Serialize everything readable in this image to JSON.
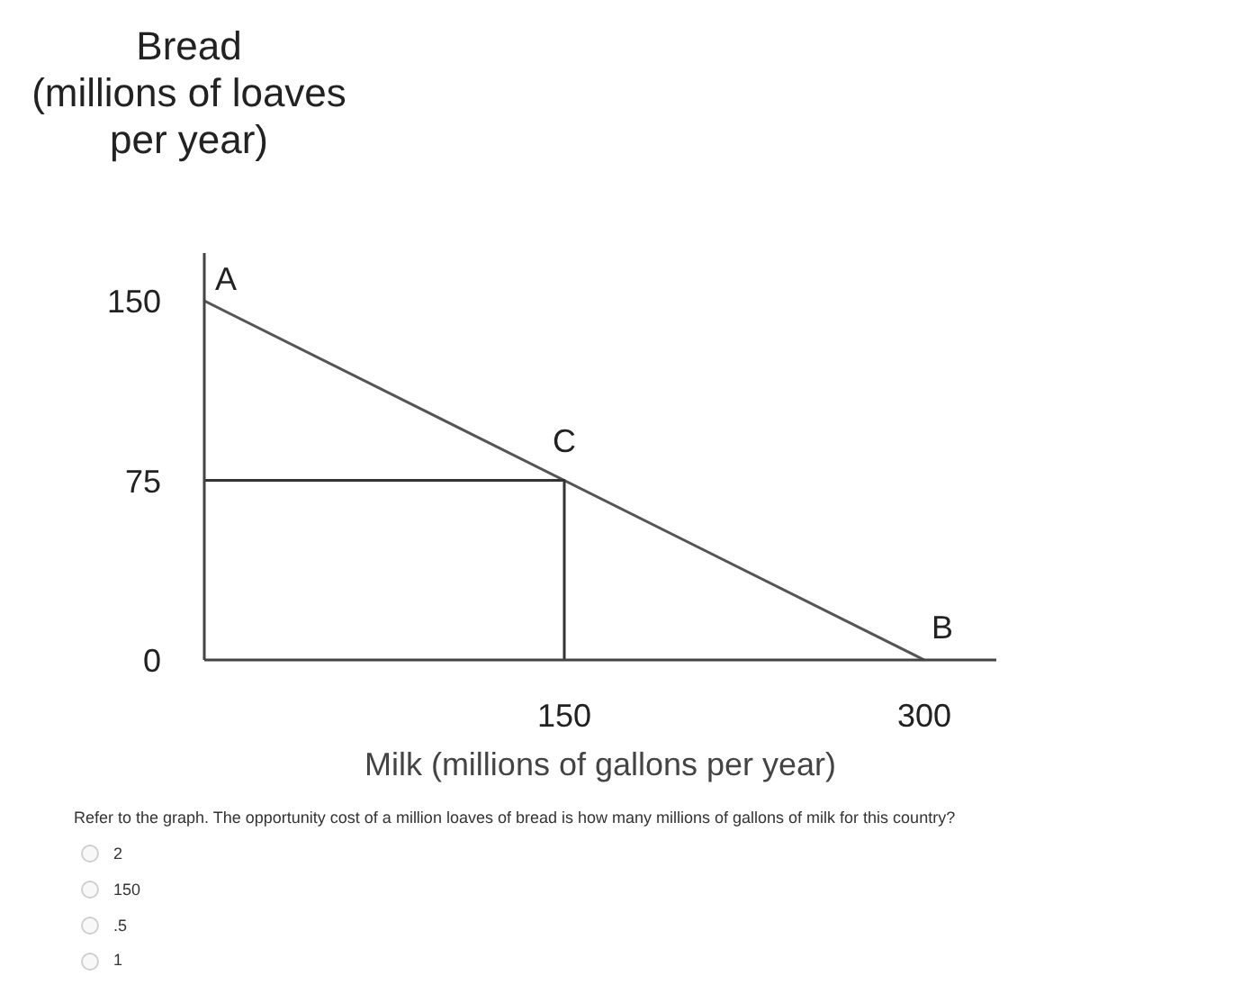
{
  "chart_data": {
    "type": "line",
    "ylabel": "Bread\n(millions of loaves\nper year)",
    "xlabel": "Milk (millions of gallons per year)",
    "series": [
      {
        "x": [
          0,
          300
        ],
        "values": [
          150,
          0
        ],
        "color": "#555555"
      },
      {
        "x": [
          0,
          150,
          150
        ],
        "values": [
          75,
          75,
          0
        ],
        "color": "#333333"
      }
    ],
    "xlim": [
      0,
      330
    ],
    "ylim": [
      0,
      170
    ],
    "xticks": [
      150,
      300
    ],
    "yticks": [
      0,
      75,
      150
    ],
    "grid": false,
    "marker": "none",
    "line_style": "solid",
    "annotations": [
      {
        "text": "A",
        "x": 0,
        "y": 150
      },
      {
        "text": "C",
        "x": 150,
        "y": 75
      },
      {
        "text": "B",
        "x": 300,
        "y": 0
      },
      "Refer to the graph. The opportunity cost of a million loaves of bread is how many millions of gallons of milk for this country?",
      "2",
      "150",
      ".5",
      "1"
    ]
  }
}
